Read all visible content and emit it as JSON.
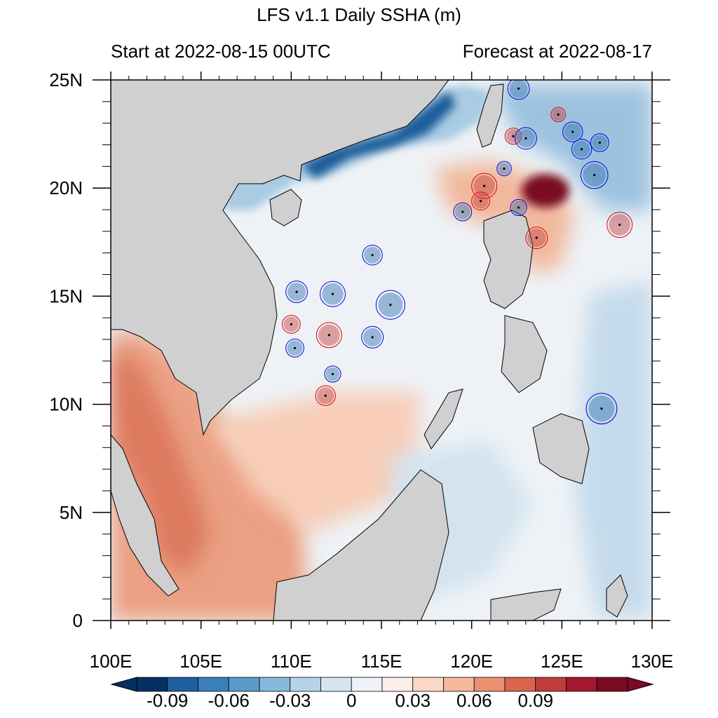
{
  "title": "LFS v1.1 Daily SSHA (m)",
  "subtitle_left": "Start at 2022-08-15 00UTC",
  "subtitle_right": "Forecast at 2022-08-17",
  "map": {
    "lon_range": [
      100,
      130
    ],
    "lat_range": [
      0,
      25
    ],
    "lon_ticks": [
      {
        "value": 100,
        "label": "100E"
      },
      {
        "value": 105,
        "label": "105E"
      },
      {
        "value": 110,
        "label": "110E"
      },
      {
        "value": 115,
        "label": "115E"
      },
      {
        "value": 120,
        "label": "120E"
      },
      {
        "value": 125,
        "label": "125E"
      },
      {
        "value": 130,
        "label": "130E"
      }
    ],
    "lat_ticks": [
      {
        "value": 0,
        "label": "0"
      },
      {
        "value": 5,
        "label": "5N"
      },
      {
        "value": 10,
        "label": "10N"
      },
      {
        "value": 15,
        "label": "15N"
      },
      {
        "value": 20,
        "label": "20N"
      },
      {
        "value": 25,
        "label": "25N"
      }
    ],
    "land_color": "#d0d0d0",
    "ocean_background": "#eef2f6"
  },
  "colorbar": {
    "levels": [
      {
        "value": "-0.09",
        "label": "-0.09"
      },
      {
        "value": "-0.06",
        "label": "-0.06"
      },
      {
        "value": "-0.03",
        "label": "-0.03"
      },
      {
        "value": "0",
        "label": "0"
      },
      {
        "value": "0.03",
        "label": "0.03"
      },
      {
        "value": "0.06",
        "label": "0.06"
      },
      {
        "value": "0.09",
        "label": "0.09"
      }
    ],
    "colors": [
      "#053061",
      "#1e5fa0",
      "#3a7fba",
      "#5b9bc9",
      "#86b9dc",
      "#b5d4e9",
      "#d5e6f1",
      "#ecf2f7",
      "#fbeee8",
      "#fbd7c6",
      "#f6b79b",
      "#eb9171",
      "#d8664f",
      "#c03c3a",
      "#a4172d",
      "#7a0b22"
    ]
  },
  "eddies": [
    {
      "type": "anticyclonic",
      "lon": 110.0,
      "lat": 13.7,
      "r": 0.5
    },
    {
      "type": "cyclonic",
      "lon": 110.3,
      "lat": 15.2,
      "r": 0.6
    },
    {
      "type": "cyclonic",
      "lon": 110.2,
      "lat": 12.6,
      "r": 0.5
    },
    {
      "type": "anticyclonic",
      "lon": 112.1,
      "lat": 13.2,
      "r": 0.7
    },
    {
      "type": "cyclonic",
      "lon": 112.3,
      "lat": 11.4,
      "r": 0.45
    },
    {
      "type": "anticyclonic",
      "lon": 111.9,
      "lat": 10.4,
      "r": 0.55
    },
    {
      "type": "cyclonic",
      "lon": 112.3,
      "lat": 15.1,
      "r": 0.7
    },
    {
      "type": "cyclonic",
      "lon": 114.5,
      "lat": 16.9,
      "r": 0.55
    },
    {
      "type": "cyclonic",
      "lon": 115.5,
      "lat": 14.6,
      "r": 0.8
    },
    {
      "type": "cyclonic",
      "lon": 114.5,
      "lat": 13.1,
      "r": 0.6
    },
    {
      "type": "cyclonic",
      "lon": 119.5,
      "lat": 18.9,
      "r": 0.5
    },
    {
      "type": "anticyclonic",
      "lon": 120.7,
      "lat": 20.1,
      "r": 0.7
    },
    {
      "type": "anticyclonic",
      "lon": 120.5,
      "lat": 19.4,
      "r": 0.5
    },
    {
      "type": "cyclonic",
      "lon": 121.8,
      "lat": 20.9,
      "r": 0.4
    },
    {
      "type": "anticyclonic",
      "lon": 122.3,
      "lat": 22.4,
      "r": 0.45
    },
    {
      "type": "cyclonic",
      "lon": 123.0,
      "lat": 22.3,
      "r": 0.6
    },
    {
      "type": "cyclonic",
      "lon": 122.6,
      "lat": 24.6,
      "r": 0.6
    },
    {
      "type": "cyclonic",
      "lon": 122.6,
      "lat": 19.1,
      "r": 0.45
    },
    {
      "type": "anticyclonic",
      "lon": 123.6,
      "lat": 17.7,
      "r": 0.6
    },
    {
      "type": "anticyclonic",
      "lon": 124.8,
      "lat": 23.4,
      "r": 0.4
    },
    {
      "type": "cyclonic",
      "lon": 125.6,
      "lat": 22.6,
      "r": 0.55
    },
    {
      "type": "cyclonic",
      "lon": 126.1,
      "lat": 21.8,
      "r": 0.55
    },
    {
      "type": "cyclonic",
      "lon": 127.1,
      "lat": 22.1,
      "r": 0.5
    },
    {
      "type": "cyclonic",
      "lon": 126.8,
      "lat": 20.6,
      "r": 0.75
    },
    {
      "type": "anticyclonic",
      "lon": 128.2,
      "lat": 18.3,
      "r": 0.7
    },
    {
      "type": "cyclonic",
      "lon": 127.2,
      "lat": 9.8,
      "r": 0.85
    }
  ]
}
